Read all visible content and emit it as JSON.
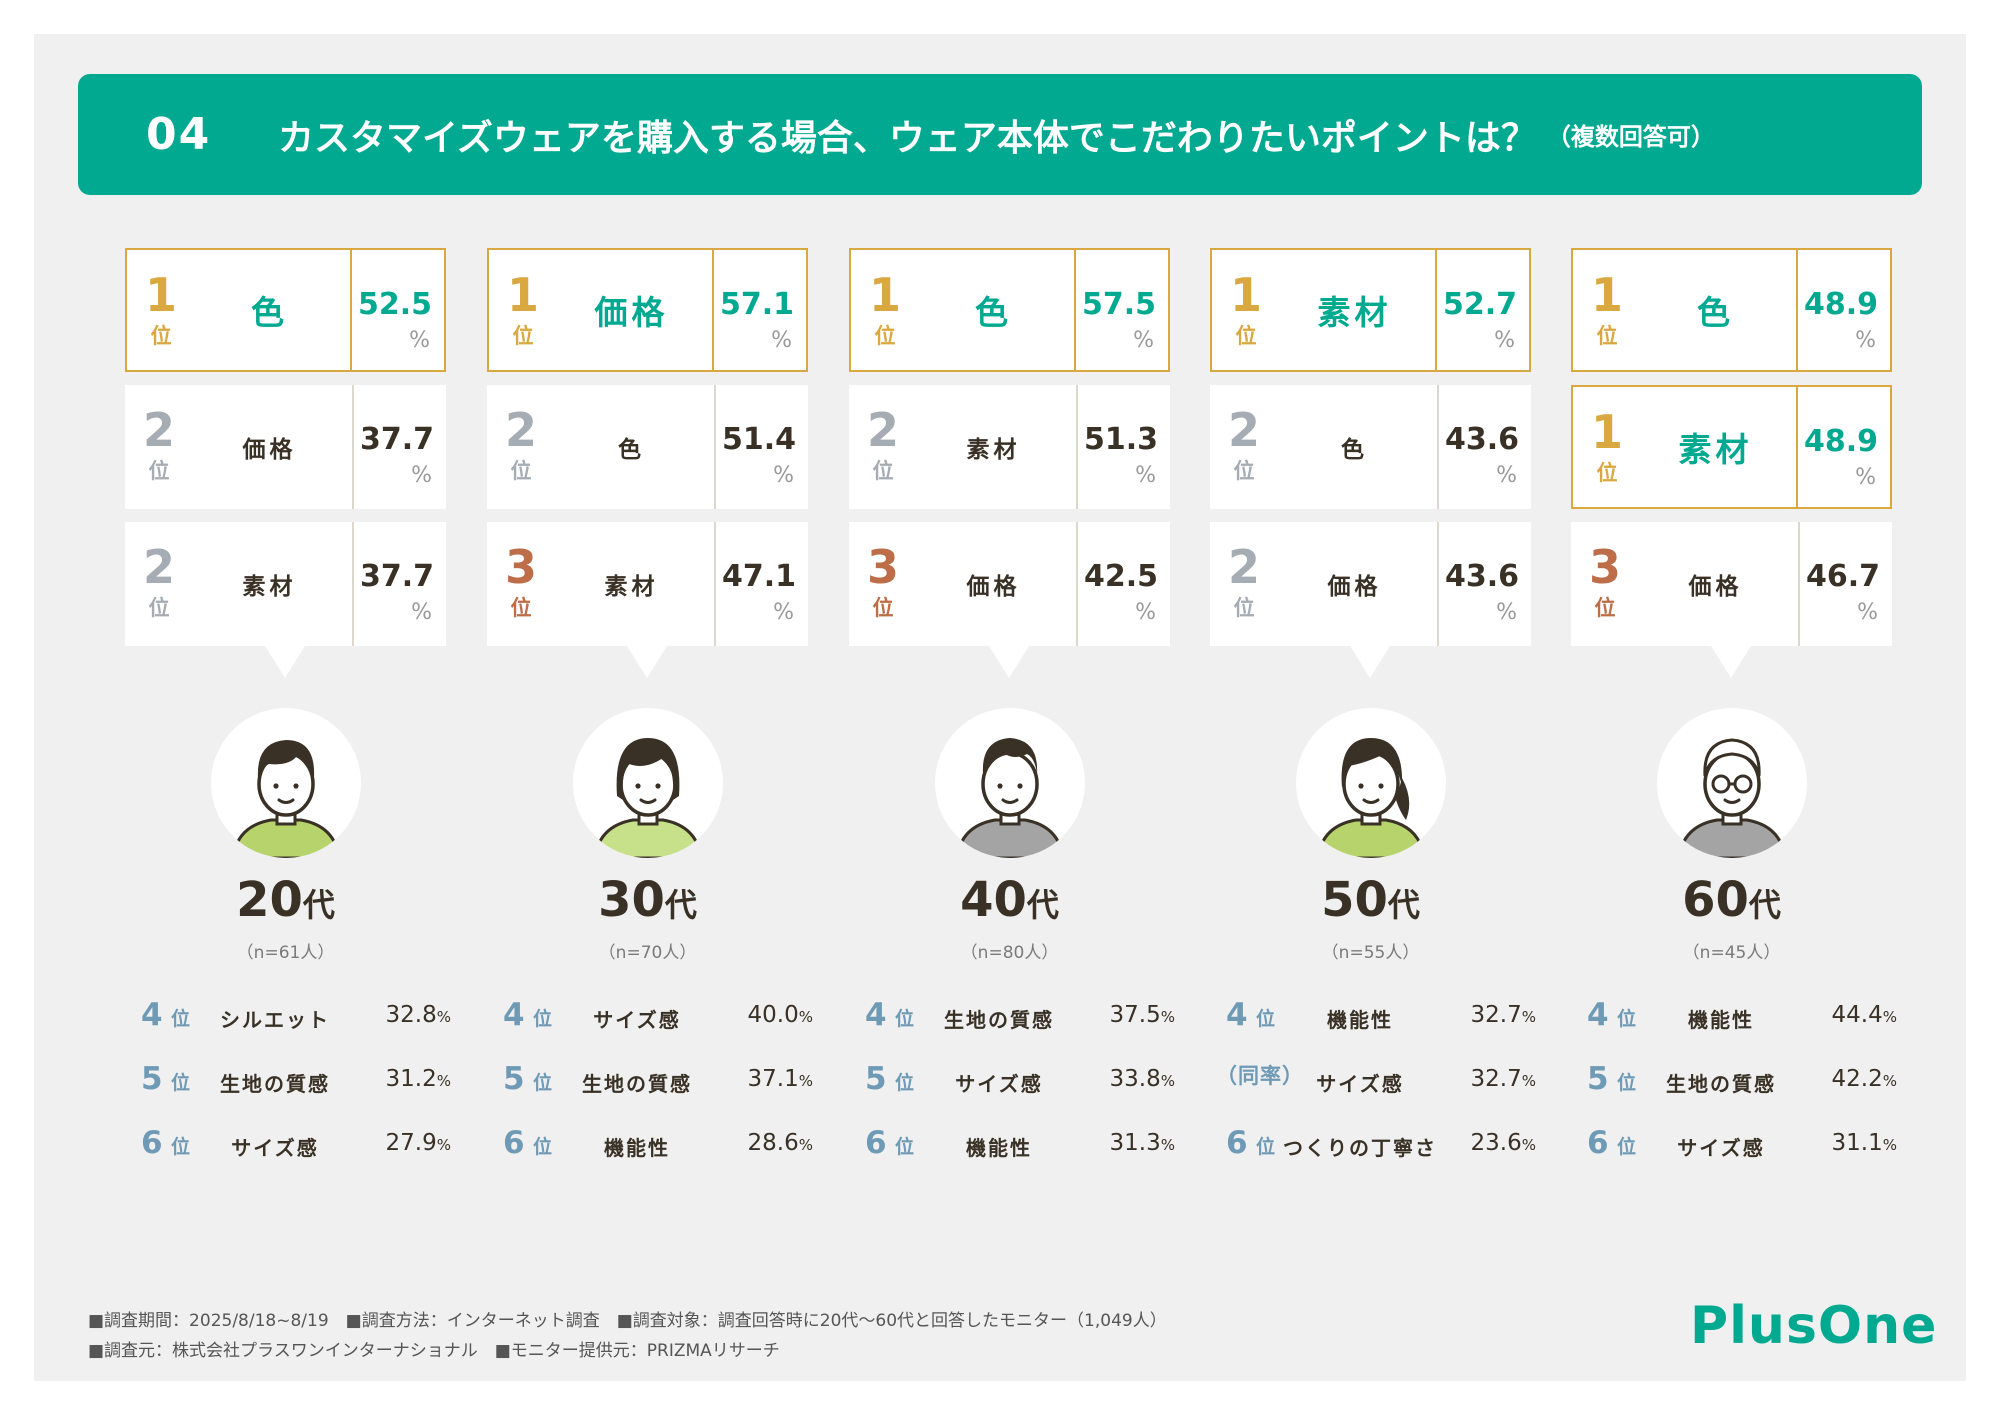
{
  "header": {
    "number": "04",
    "title": "カスタマイズウェアを購入する場合、ウェア本体でこだわりたいポイントは？",
    "subtitle": "（複数回答可）"
  },
  "chart_data": {
    "type": "table",
    "title": "カスタマイズウェアを購入する場合、ウェア本体でこだわりたいポイントは？",
    "unit": "%",
    "groups": [
      {
        "age": "20",
        "age_suffix": "代",
        "n": "（n=61人）",
        "top": [
          {
            "rank": "1",
            "rank_label": "位",
            "item": "色",
            "value": "52.5"
          },
          {
            "rank": "2",
            "rank_label": "位",
            "item": "価格",
            "value": "37.7"
          },
          {
            "rank": "2",
            "rank_label": "位",
            "item": "素材",
            "value": "37.7"
          }
        ],
        "others": [
          {
            "rank": "4",
            "rank_label": "位",
            "item": "シルエット",
            "value": "32.8"
          },
          {
            "rank": "5",
            "rank_label": "位",
            "item": "生地の質感",
            "value": "31.2"
          },
          {
            "rank": "6",
            "rank_label": "位",
            "item": "サイズ感",
            "value": "27.9"
          }
        ]
      },
      {
        "age": "30",
        "age_suffix": "代",
        "n": "（n=70人）",
        "top": [
          {
            "rank": "1",
            "rank_label": "位",
            "item": "価格",
            "value": "57.1"
          },
          {
            "rank": "2",
            "rank_label": "位",
            "item": "色",
            "value": "51.4"
          },
          {
            "rank": "3",
            "rank_label": "位",
            "item": "素材",
            "value": "47.1"
          }
        ],
        "others": [
          {
            "rank": "4",
            "rank_label": "位",
            "item": "サイズ感",
            "value": "40.0"
          },
          {
            "rank": "5",
            "rank_label": "位",
            "item": "生地の質感",
            "value": "37.1"
          },
          {
            "rank": "6",
            "rank_label": "位",
            "item": "機能性",
            "value": "28.6"
          }
        ]
      },
      {
        "age": "40",
        "age_suffix": "代",
        "n": "（n=80人）",
        "top": [
          {
            "rank": "1",
            "rank_label": "位",
            "item": "色",
            "value": "57.5"
          },
          {
            "rank": "2",
            "rank_label": "位",
            "item": "素材",
            "value": "51.3"
          },
          {
            "rank": "3",
            "rank_label": "位",
            "item": "価格",
            "value": "42.5"
          }
        ],
        "others": [
          {
            "rank": "4",
            "rank_label": "位",
            "item": "生地の質感",
            "value": "37.5"
          },
          {
            "rank": "5",
            "rank_label": "位",
            "item": "サイズ感",
            "value": "33.8"
          },
          {
            "rank": "6",
            "rank_label": "位",
            "item": "機能性",
            "value": "31.3"
          }
        ]
      },
      {
        "age": "50",
        "age_suffix": "代",
        "n": "（n=55人）",
        "top": [
          {
            "rank": "1",
            "rank_label": "位",
            "item": "素材",
            "value": "52.7"
          },
          {
            "rank": "2",
            "rank_label": "位",
            "item": "色",
            "value": "43.6"
          },
          {
            "rank": "2",
            "rank_label": "位",
            "item": "価格",
            "value": "43.6"
          }
        ],
        "others": [
          {
            "rank": "4",
            "rank_label": "位",
            "item": "機能性",
            "value": "32.7"
          },
          {
            "rank": "（同率）",
            "rank_label": "",
            "item": "サイズ感",
            "value": "32.7"
          },
          {
            "rank": "6",
            "rank_label": "位",
            "item": "つくりの丁寧さ",
            "value": "23.6"
          }
        ]
      },
      {
        "age": "60",
        "age_suffix": "代",
        "n": "（n=45人）",
        "top": [
          {
            "rank": "1",
            "rank_label": "位",
            "item": "色",
            "value": "48.9"
          },
          {
            "rank": "1",
            "rank_label": "位",
            "item": "素材",
            "value": "48.9"
          },
          {
            "rank": "3",
            "rank_label": "位",
            "item": "価格",
            "value": "46.7"
          }
        ],
        "others": [
          {
            "rank": "4",
            "rank_label": "位",
            "item": "機能性",
            "value": "44.4"
          },
          {
            "rank": "5",
            "rank_label": "位",
            "item": "生地の質感",
            "value": "42.2"
          },
          {
            "rank": "6",
            "rank_label": "位",
            "item": "サイズ感",
            "value": "31.1"
          }
        ]
      }
    ]
  },
  "footer": {
    "line1": "■調査期間：2025/8/18~8/19　■調査方法：インターネット調査　■調査対象：調査回答時に20代～60代と回答したモニター（1,049人）",
    "line2": "■調査元：株式会社プラスワンインターナショナル　■モニター提供元：PRIZMAリサーチ",
    "logo": "PlusOne"
  },
  "colors": {
    "teal": "#00a98f",
    "gold": "#d9a840",
    "silver": "#a5acb3",
    "bronze": "#bd6e48",
    "blue": "#6f9ab6",
    "background": "#eff0ef"
  },
  "avatars": [
    "young-man-icon",
    "woman-icon",
    "man-icon",
    "middle-aged-woman-icon",
    "older-man-glasses-icon"
  ]
}
